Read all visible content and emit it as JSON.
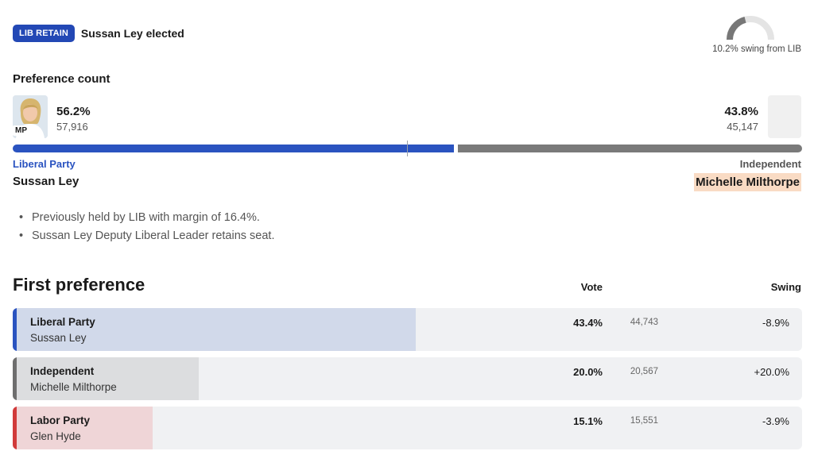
{
  "header": {
    "badge": "LIB RETAIN",
    "elected_text": "Sussan Ley elected",
    "badge_color": "#2348b5"
  },
  "swing": {
    "text": "10.2% swing from LIB",
    "fraction": 0.42
  },
  "preference_count": {
    "title": "Preference count",
    "mp_tag": "MP",
    "left": {
      "party": "Liberal Party",
      "candidate": "Sussan Ley",
      "percent": "56.2%",
      "votes": "57,916",
      "share": 56.2,
      "color": "#2a53c0"
    },
    "right": {
      "party": "Independent",
      "candidate": "Michelle Milthorpe",
      "percent": "43.8%",
      "votes": "45,147",
      "share": 43.8,
      "color": "#7a7a7a"
    }
  },
  "notes": [
    "Previously held by LIB with margin of 16.4%.",
    "Sussan Ley Deputy Liberal Leader retains seat."
  ],
  "first_preference": {
    "title": "First preference",
    "vote_header": "Vote",
    "swing_header": "Swing",
    "rows": [
      {
        "party": "Liberal Party",
        "candidate": "Sussan Ley",
        "percent": "43.4%",
        "votes": "44,743",
        "swing": "-8.9%",
        "share": 43.4,
        "edge_color": "#2a53c0",
        "fill_color": "#d1d9ea"
      },
      {
        "party": "Independent",
        "candidate": "Michelle Milthorpe",
        "percent": "20.0%",
        "votes": "20,567",
        "swing": "+20.0%",
        "share": 20.0,
        "edge_color": "#6e6e6e",
        "fill_color": "#dcdddf"
      },
      {
        "party": "Labor Party",
        "candidate": "Glen Hyde",
        "percent": "15.1%",
        "votes": "15,551",
        "swing": "-3.9%",
        "share": 15.1,
        "edge_color": "#d13a3a",
        "fill_color": "#efd5d7"
      }
    ]
  }
}
